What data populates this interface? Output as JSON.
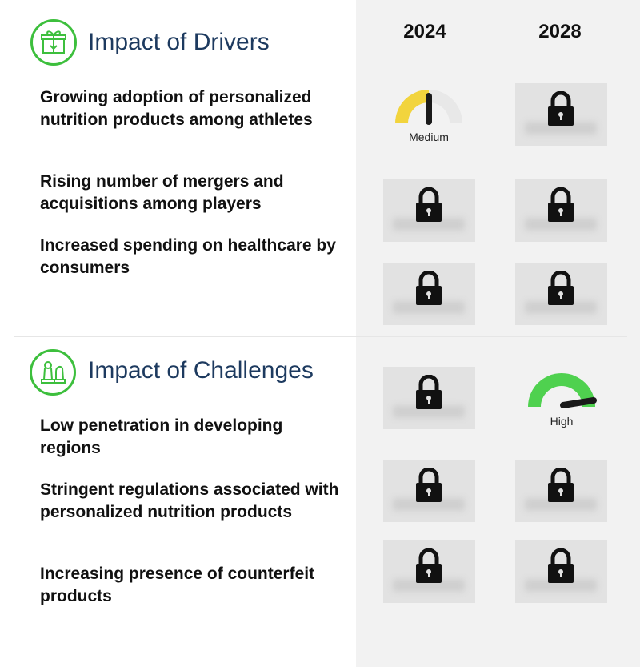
{
  "columns": [
    "2024",
    "2028"
  ],
  "drivers": {
    "title": "Impact of Drivers",
    "icon": "gift-box-icon",
    "items": [
      "Growing adoption of personalized nutrition products among athletes",
      "Rising number of mergers and acquisitions among players",
      "Increased spending on healthcare by consumers"
    ],
    "cells": [
      [
        "Medium",
        "locked"
      ],
      [
        "locked",
        "locked"
      ],
      [
        "locked",
        "locked"
      ]
    ]
  },
  "challenges": {
    "title": "Impact of Challenges",
    "icon": "chess-pieces-icon",
    "items": [
      "Low penetration in developing regions",
      "Stringent regulations associated with personalized nutrition products",
      "Increasing presence of counterfeit products"
    ],
    "cells": [
      [
        "locked",
        "High"
      ],
      [
        "locked",
        "locked"
      ],
      [
        "locked",
        "locked"
      ]
    ]
  },
  "gauges": {
    "medium": {
      "label": "Medium",
      "level": 0.5,
      "color": "#f2d43d"
    },
    "high": {
      "label": "High",
      "level": 0.85,
      "color": "#4fd14f"
    }
  },
  "colors": {
    "accent": "#3dbf3d",
    "title": "#1d3a5f",
    "panel": "#f2f2f2",
    "lock_bg": "#e2e2e2"
  }
}
